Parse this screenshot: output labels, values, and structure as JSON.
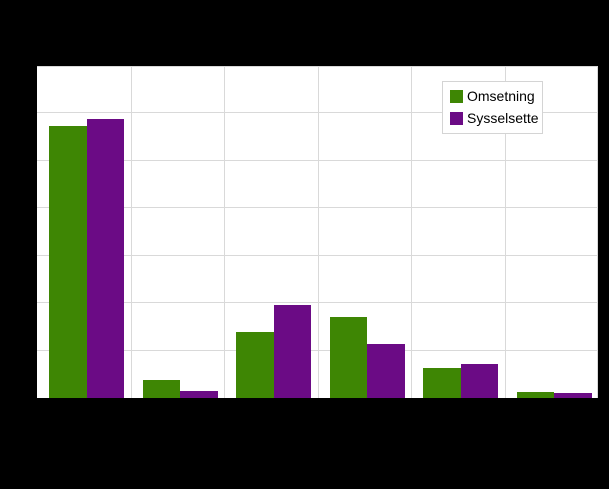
{
  "chart_data": {
    "type": "bar",
    "title": "",
    "categories": [
      "",
      "",
      "",
      "",
      "",
      ""
    ],
    "series": [
      {
        "name": "Omsetning",
        "color": "#3e8604",
        "values": [
          57.3,
          3.8,
          13.9,
          17.0,
          6.4,
          1.2
        ]
      },
      {
        "name": "Sysselsette",
        "color": "#6b0b85",
        "values": [
          58.9,
          1.4,
          19.6,
          11.4,
          7.1,
          1.0
        ]
      }
    ],
    "xlabel": "",
    "ylabel": "",
    "ylim": [
      0,
      70
    ],
    "gridline_step": 10,
    "grid": true,
    "legend_position": "top-right",
    "background_color": "#000000",
    "plot_background_color": "#ffffff",
    "gridline_color": "#d9d9d9"
  }
}
